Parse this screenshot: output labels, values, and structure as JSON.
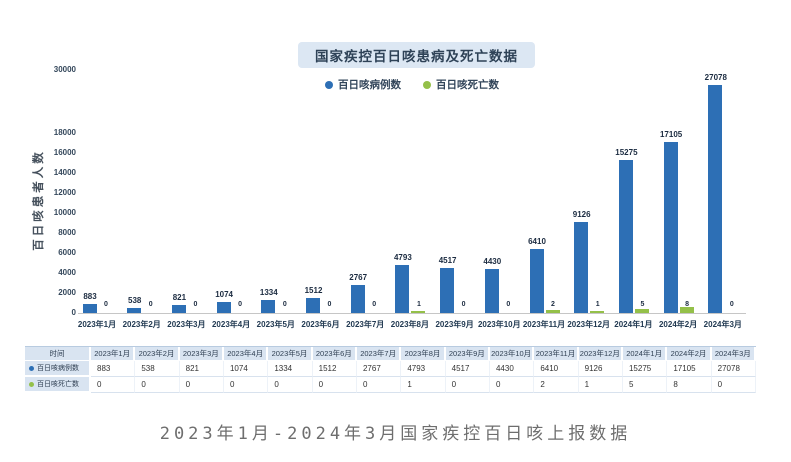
{
  "header": {
    "title": "国家疾控百日咳患病及死亡数据",
    "legend": [
      {
        "label": "百日咳病例数",
        "color": "#2d6fb5"
      },
      {
        "label": "百日咳死亡数",
        "color": "#94c049"
      }
    ]
  },
  "chart_data": {
    "type": "bar",
    "title": "国家疾控百日咳患病及死亡数据",
    "categories": [
      "2023年1月",
      "2023年2月",
      "2023年3月",
      "2023年4月",
      "2023年5月",
      "2023年6月",
      "2023年7月",
      "2023年8月",
      "2023年9月",
      "2023年10月",
      "2023年11月",
      "2023年12月",
      "2024年1月",
      "2024年2月",
      "2024年3月"
    ],
    "series": [
      {
        "name": "百日咳病例数",
        "color": "#2d6fb5",
        "values": [
          883,
          538,
          821,
          1074,
          1334,
          1512,
          2767,
          4793,
          4517,
          4430,
          6410,
          9126,
          15275,
          17105,
          27078
        ]
      },
      {
        "name": "百日咳死亡数",
        "color": "#94c049",
        "values": [
          0,
          0,
          0,
          0,
          0,
          0,
          0,
          1,
          0,
          0,
          2,
          1,
          5,
          8,
          0
        ]
      }
    ],
    "ylabel": "百日咳患者人数",
    "xlabel": "",
    "yticks": [
      0,
      2000,
      4000,
      6000,
      8000,
      10000,
      12000,
      14000,
      16000,
      18000,
      30000
    ],
    "ylim": [
      0,
      30000
    ],
    "axis_break_above": 18000,
    "grid": false,
    "legend_position": "top",
    "bar_value_labels": true
  },
  "table": {
    "corner_label": "时间",
    "columns": [
      "2023年1月",
      "2023年2月",
      "2023年3月",
      "2023年4月",
      "2023年5月",
      "2023年6月",
      "2023年7月",
      "2023年8月",
      "2023年9月",
      "2023年10月",
      "2023年11月",
      "2023年12月",
      "2024年1月",
      "2024年2月",
      "2024年3月"
    ],
    "rows": [
      {
        "label": "百日咳病例数",
        "dot_color": "#2d6fb5",
        "values": [
          "883",
          "538",
          "821",
          "1074",
          "1334",
          "1512",
          "2767",
          "4793",
          "4517",
          "4430",
          "6410",
          "9126",
          "15275",
          "17105",
          "27078"
        ]
      },
      {
        "label": "百日咳死亡数",
        "dot_color": "#94c049",
        "values": [
          "0",
          "0",
          "0",
          "0",
          "0",
          "0",
          "0",
          "1",
          "0",
          "0",
          "2",
          "1",
          "5",
          "8",
          "0"
        ]
      }
    ]
  },
  "caption": "2023年1月-2024年3月国家疾控百日咳上报数据"
}
